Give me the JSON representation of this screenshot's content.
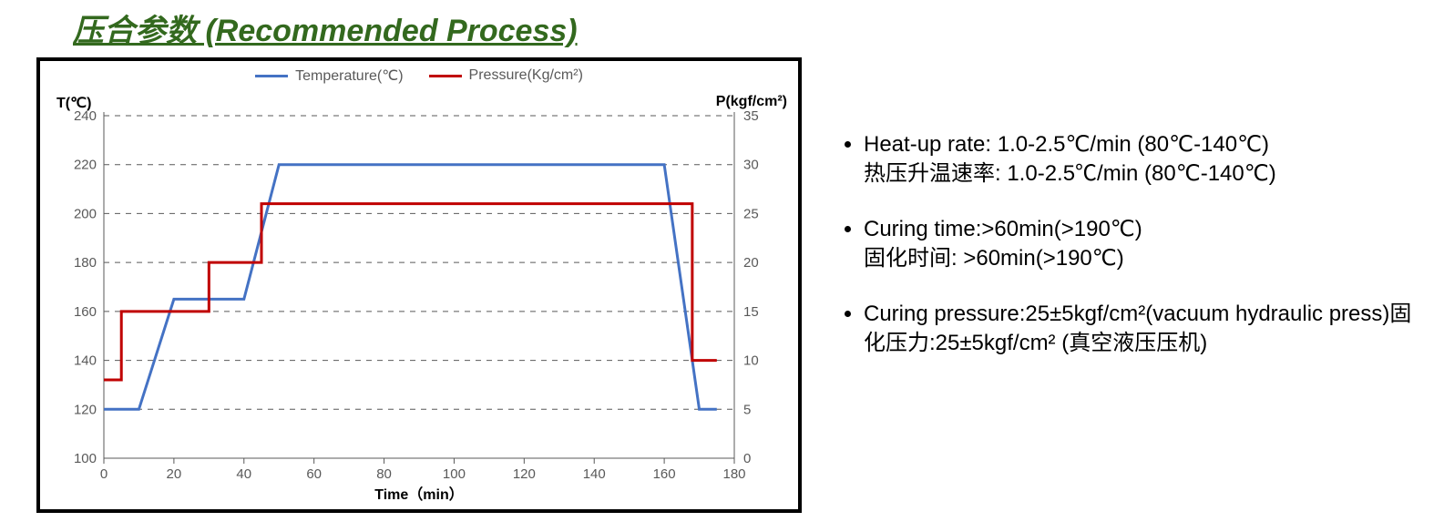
{
  "title": "压合参数 (Recommended Process)",
  "chart": {
    "type": "line-dual-axis",
    "background_color": "#ffffff",
    "border_color": "#000000",
    "grid_color": "#595959",
    "tick_color": "#595959",
    "legend": {
      "items": [
        {
          "label": "Temperature(℃)",
          "color": "#4472c4"
        },
        {
          "label": "Pressure(Kg/cm²)",
          "color": "#c00000"
        }
      ]
    },
    "x": {
      "title": "Time（min）",
      "min": 0,
      "max": 180,
      "step": 20
    },
    "y_left": {
      "title": "T(℃)",
      "min": 100,
      "max": 240,
      "step": 20
    },
    "y_right": {
      "title": "P(kgf/cm²)",
      "min": 0,
      "max": 35,
      "step": 5
    },
    "series": [
      {
        "name": "temperature",
        "axis": "left",
        "color": "#4472c4",
        "stroke_width": 3,
        "points": [
          [
            0,
            120
          ],
          [
            10,
            120
          ],
          [
            20,
            165
          ],
          [
            40,
            165
          ],
          [
            50,
            220
          ],
          [
            160,
            220
          ],
          [
            170,
            120
          ],
          [
            175,
            120
          ]
        ]
      },
      {
        "name": "pressure",
        "axis": "right",
        "color": "#c00000",
        "stroke_width": 3,
        "points": [
          [
            0,
            8
          ],
          [
            5,
            8
          ],
          [
            5,
            15
          ],
          [
            30,
            15
          ],
          [
            30,
            20
          ],
          [
            45,
            20
          ],
          [
            45,
            26
          ],
          [
            165,
            26
          ],
          [
            168,
            26
          ],
          [
            168,
            10
          ],
          [
            175,
            10
          ]
        ]
      }
    ]
  },
  "bullets": [
    "Heat-up rate: 1.0-2.5℃/min (80℃-140℃)\n热压升温速率: 1.0-2.5℃/min (80℃-140℃)",
    "Curing time:>60min(>190℃)\n固化时间: >60min(>190℃)",
    "Curing pressure:25±5kgf/cm²(vacuum hydraulic press)固化压力:25±5kgf/cm²  (真空液压压机)"
  ]
}
